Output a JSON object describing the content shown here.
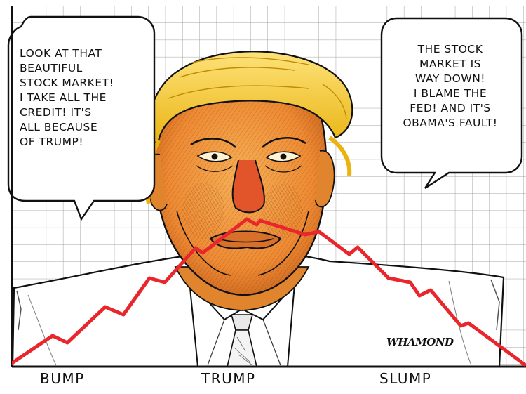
{
  "cartoon": {
    "bubble_left": {
      "lines": [
        "LOOK AT THAT",
        "BEAUTIFUL",
        "STOCK MARKET!",
        "I TAKE ALL THE",
        "CREDIT! IT'S",
        "ALL BECAUSE",
        "OF TRUMP!"
      ]
    },
    "bubble_right": {
      "lines": [
        "THE STOCK",
        "MARKET IS",
        "WAY DOWN!",
        "I BLAME THE",
        "FED! AND IT'S",
        "OBAMA'S FAULT!"
      ]
    },
    "x_labels": [
      "BUMP",
      "TRUMP",
      "SLUMP"
    ],
    "signature": "WHAMOND",
    "colors": {
      "trend_line": "#e8262b",
      "hair": "#f2c21a",
      "skin": "#f0913e",
      "grid": "#9a9a9a",
      "outline": "#111111"
    }
  }
}
